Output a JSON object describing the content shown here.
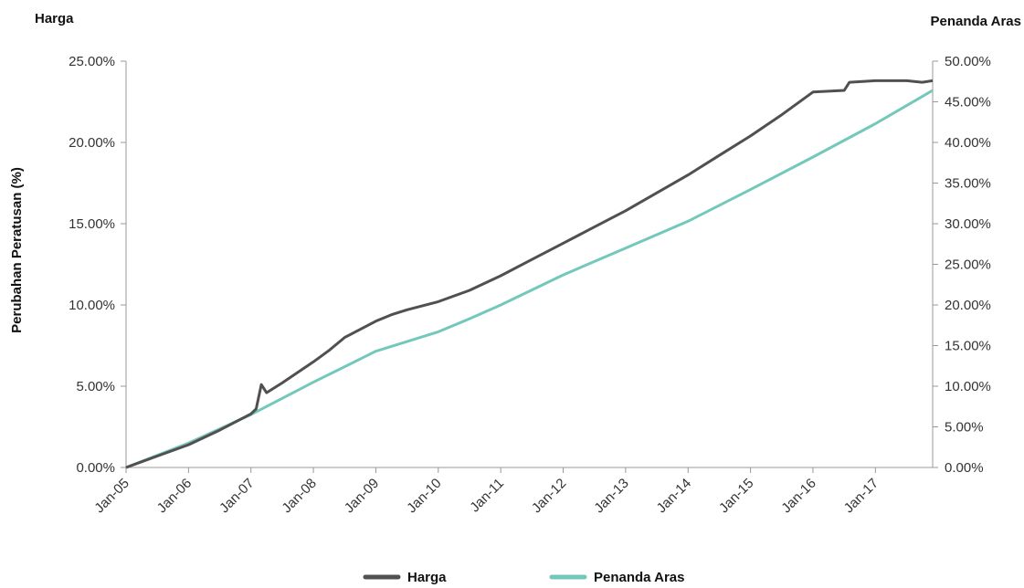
{
  "chart_data": {
    "type": "line",
    "left_axis_title": "Harga",
    "right_axis_title": "Penanda Aras",
    "ylabel": "Perubahan Peratusan (%)",
    "xlabel": "",
    "x_tick_labels": [
      "Jan-05",
      "Jan-06",
      "Jan-07",
      "Jan-08",
      "Jan-09",
      "Jan-10",
      "Jan-11",
      "Jan-12",
      "Jan-13",
      "Jan-14",
      "Jan-15",
      "Jan-16",
      "Jan-17"
    ],
    "y_left_ticks": [
      "0.00%",
      "5.00%",
      "10.00%",
      "15.00%",
      "20.00%",
      "25.00%"
    ],
    "y_right_ticks": [
      "0.00%",
      "5.00%",
      "10.00%",
      "15.00%",
      "20.00%",
      "25.00%",
      "30.00%",
      "35.00%",
      "40.00%",
      "45.00%",
      "50.00%"
    ],
    "y_left_range": [
      0,
      25
    ],
    "y_right_range": [
      0,
      50
    ],
    "x_range": [
      "2005-01",
      "2017-12"
    ],
    "grid": false,
    "legend_position": "bottom",
    "series": [
      {
        "name": "Harga",
        "axis": "left",
        "color": "#505050",
        "x": [
          "2005-01",
          "2005-07",
          "2006-01",
          "2006-07",
          "2007-01",
          "2007-02",
          "2007-03",
          "2007-04",
          "2007-07",
          "2008-01",
          "2008-04",
          "2008-07",
          "2009-01",
          "2009-04",
          "2009-07",
          "2010-01",
          "2010-07",
          "2011-01",
          "2011-07",
          "2012-01",
          "2012-07",
          "2013-01",
          "2013-07",
          "2014-01",
          "2014-07",
          "2015-01",
          "2015-07",
          "2016-01",
          "2016-07",
          "2016-08",
          "2017-01",
          "2017-07",
          "2017-10",
          "2017-12"
        ],
        "values": [
          0.0,
          0.7,
          1.4,
          2.3,
          3.3,
          3.6,
          5.1,
          4.6,
          5.2,
          6.5,
          7.2,
          8.0,
          9.0,
          9.4,
          9.7,
          10.2,
          10.9,
          11.8,
          12.8,
          13.8,
          14.8,
          15.8,
          16.9,
          18.0,
          19.2,
          20.4,
          21.7,
          23.1,
          23.2,
          23.7,
          23.8,
          23.8,
          23.7,
          23.8
        ]
      },
      {
        "name": "Penanda Aras",
        "axis": "right",
        "color": "#74c8bb",
        "x": [
          "2005-01",
          "2006-01",
          "2007-01",
          "2008-01",
          "2009-01",
          "2010-01",
          "2010-07",
          "2011-01",
          "2012-01",
          "2013-01",
          "2014-01",
          "2015-01",
          "2016-01",
          "2017-01",
          "2017-12"
        ],
        "values": [
          0.0,
          3.0,
          6.5,
          10.5,
          14.3,
          16.7,
          18.3,
          20.0,
          23.7,
          27.0,
          30.3,
          34.2,
          38.2,
          42.3,
          46.4
        ]
      }
    ]
  }
}
